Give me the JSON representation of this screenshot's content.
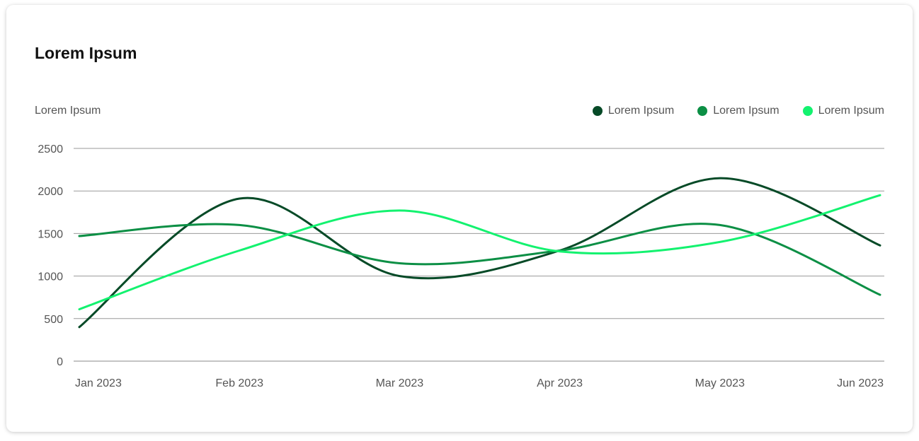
{
  "card": {
    "title": "Lorem Ipsum"
  },
  "chart_data": {
    "type": "line",
    "title": "Lorem Ipsum",
    "ylabel": "Lorem Ipsum",
    "xlabel": "",
    "categories": [
      "Jan 2023",
      "Feb 2023",
      "Mar 2023",
      "Apr 2023",
      "May 2023",
      "Jun 2023"
    ],
    "y_ticks": [
      0,
      500,
      1000,
      1500,
      2000,
      2500
    ],
    "ylim": [
      0,
      2500
    ],
    "grid": true,
    "legend_position": "top-right",
    "series": [
      {
        "name": "Lorem Ipsum",
        "color": "#064a27",
        "points": [
          {
            "x": "Jan 2023",
            "y": 400
          },
          {
            "x": "Feb 2023",
            "y": 1910
          },
          {
            "x": "Mar 2023",
            "y": 1000
          },
          {
            "x": "Apr 2023",
            "y": 1300
          },
          {
            "x": "May 2023",
            "y": 2150
          },
          {
            "x": "Jun 2023",
            "y": 1360
          }
        ]
      },
      {
        "name": "Lorem Ipsum",
        "color": "#0c8f45",
        "points": [
          {
            "x": "Jan 2023",
            "y": 1470
          },
          {
            "x": "Feb 2023",
            "y": 1600
          },
          {
            "x": "Mar 2023",
            "y": 1150
          },
          {
            "x": "Apr 2023",
            "y": 1300
          },
          {
            "x": "May 2023",
            "y": 1600
          },
          {
            "x": "Jun 2023",
            "y": 780
          }
        ]
      },
      {
        "name": "Lorem Ipsum",
        "color": "#13f26f",
        "points": [
          {
            "x": "Jan 2023",
            "y": 610
          },
          {
            "x": "Feb 2023",
            "y": 1300
          },
          {
            "x": "Mar 2023",
            "y": 1770
          },
          {
            "x": "Apr 2023",
            "y": 1290
          },
          {
            "x": "May 2023",
            "y": 1400
          },
          {
            "x": "Jun 2023",
            "y": 1950
          }
        ]
      }
    ]
  }
}
